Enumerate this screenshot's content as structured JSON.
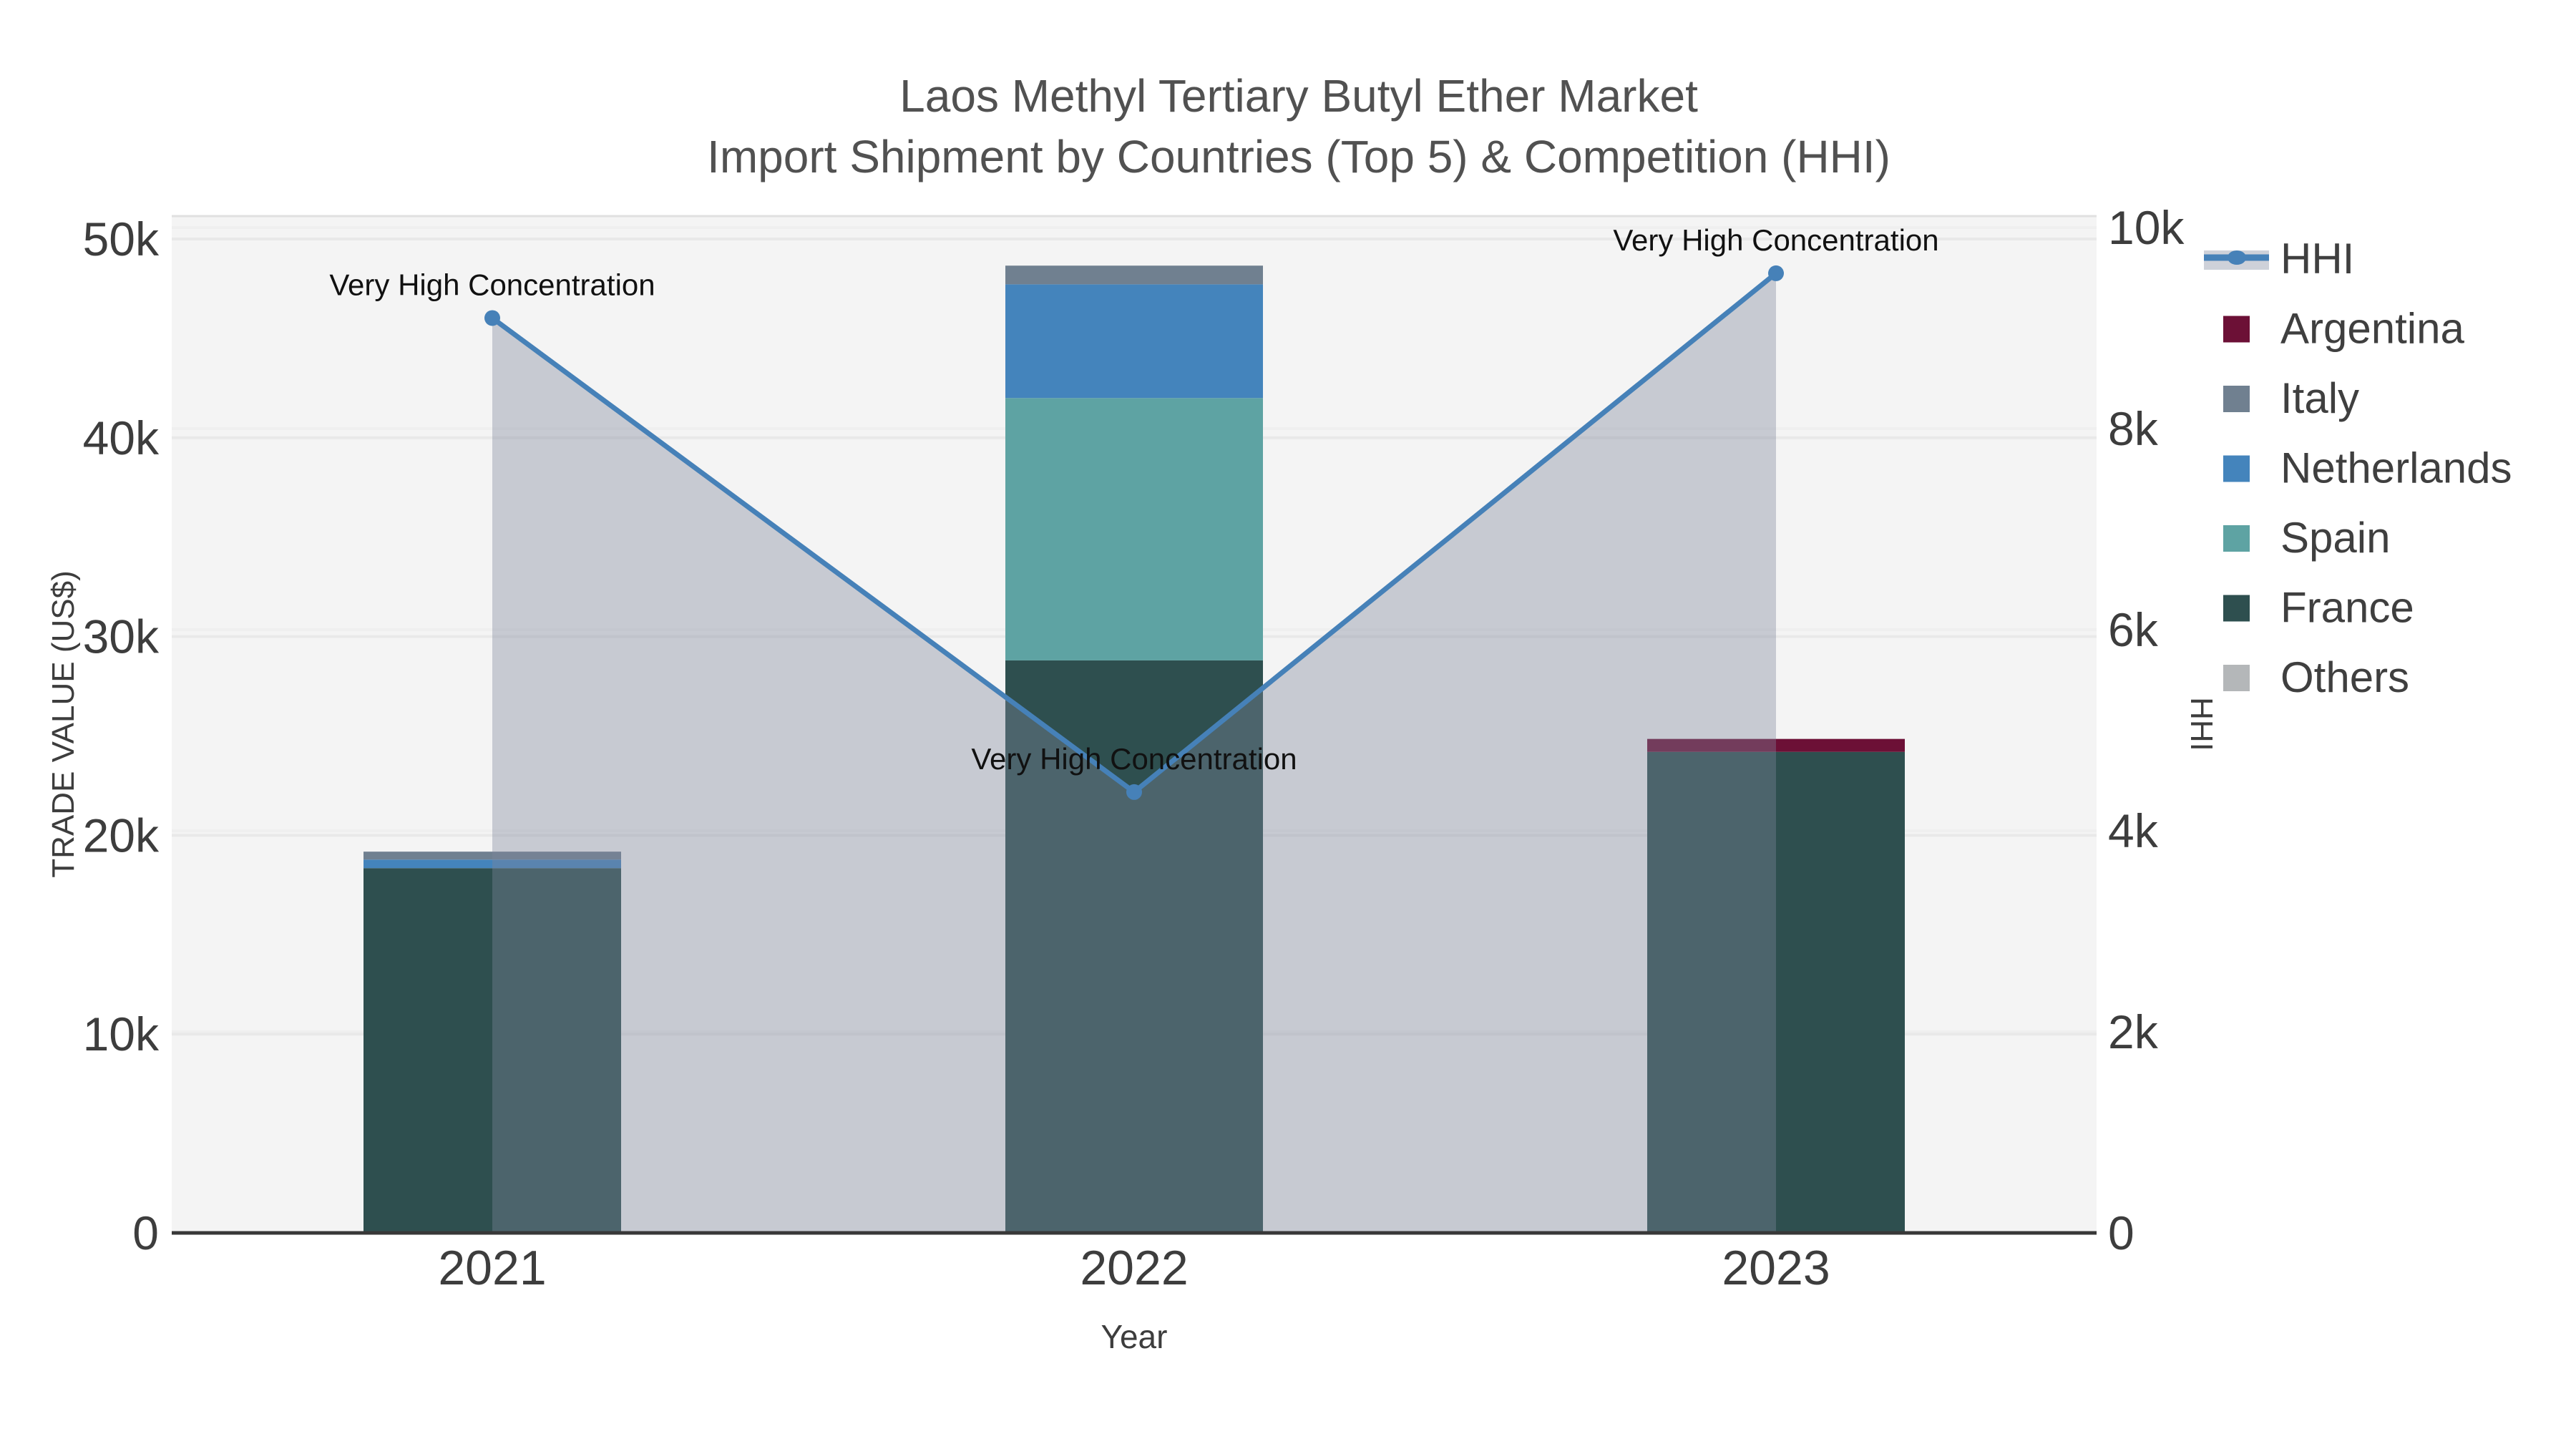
{
  "title": {
    "line1": "Laos Methyl Tertiary Butyl Ether Market",
    "line2": "Import Shipment by Countries (Top 5) & Competition (HHI)"
  },
  "axes": {
    "left_title": "TRADE VALUE (US$)",
    "right_title": "HHI",
    "x_title": "Year",
    "left_tick_labels": [
      "0",
      "10k",
      "20k",
      "30k",
      "40k",
      "50k"
    ],
    "left_tick_values": [
      0,
      10000,
      20000,
      30000,
      40000,
      50000
    ],
    "right_tick_labels": [
      "0",
      "2k",
      "4k",
      "6k",
      "8k",
      "10k"
    ],
    "right_tick_values": [
      0,
      2000,
      4000,
      6000,
      8000,
      10000
    ]
  },
  "legend": [
    {
      "label": "HHI",
      "type": "line",
      "color": "#4681b8"
    },
    {
      "label": "Argentina",
      "type": "patch",
      "color": "#6c1036"
    },
    {
      "label": "Italy",
      "type": "patch",
      "color": "#708090"
    },
    {
      "label": "Netherlands",
      "type": "patch",
      "color": "#4484bc"
    },
    {
      "label": "Spain",
      "type": "patch",
      "color": "#5ea3a3"
    },
    {
      "label": "France",
      "type": "patch",
      "color": "#2e4f4f"
    },
    {
      "label": "Others",
      "type": "patch",
      "color": "#b4b7b9"
    }
  ],
  "colors": {
    "plot_background": "#f4f4f4",
    "figure_background": "#ffffff",
    "gridline_left": "#e9e9e9",
    "gridline_right": "#efefef",
    "baseline": "#383838",
    "hhi_line": "#4681b8",
    "hhi_area_fill": "rgba(125,135,155,0.38)",
    "annotation_text": "#111111",
    "tick_text": "#3d3d3d",
    "title_text": "#515151"
  },
  "chart_data": {
    "type": "bar+line",
    "title": "Laos Methyl Tertiary Butyl Ether Market — Import Shipment by Countries (Top 5) & Competition (HHI)",
    "categories": [
      "2021",
      "2022",
      "2023"
    ],
    "xlabel": "Year",
    "ylabel": "TRADE VALUE (US$)",
    "y2label": "HHI",
    "ylim": [
      0,
      50000
    ],
    "y2lim": [
      0,
      10000
    ],
    "grid": true,
    "legend_position": "right",
    "bar_stack_order_bottom_to_top": [
      "France",
      "Spain",
      "Netherlands",
      "Italy",
      "Argentina",
      "Others"
    ],
    "series": [
      {
        "name": "France",
        "axis": "left",
        "color": "#2e4f4f",
        "values": [
          18350,
          28800,
          24200
        ]
      },
      {
        "name": "Spain",
        "axis": "left",
        "color": "#5ea3a3",
        "values": [
          0,
          13200,
          0
        ]
      },
      {
        "name": "Netherlands",
        "axis": "left",
        "color": "#4484bc",
        "values": [
          430,
          5720,
          0
        ]
      },
      {
        "name": "Italy",
        "axis": "left",
        "color": "#708090",
        "values": [
          400,
          940,
          0
        ]
      },
      {
        "name": "Argentina",
        "axis": "left",
        "color": "#6c1036",
        "values": [
          0,
          0,
          650
        ]
      },
      {
        "name": "Others",
        "axis": "left",
        "color": "#b4b7b9",
        "values": [
          0,
          0,
          0
        ]
      }
    ],
    "line_series": {
      "name": "HHI",
      "axis": "right",
      "color": "#4681b8",
      "area_fill": "rgba(125,135,155,0.38)",
      "values": [
        9100,
        4385,
        9545
      ]
    },
    "annotations": [
      {
        "x": "2021",
        "text": "Very High Concentration"
      },
      {
        "x": "2022",
        "text": "Very High Concentration"
      },
      {
        "x": "2023",
        "text": "Very High Concentration"
      }
    ]
  }
}
